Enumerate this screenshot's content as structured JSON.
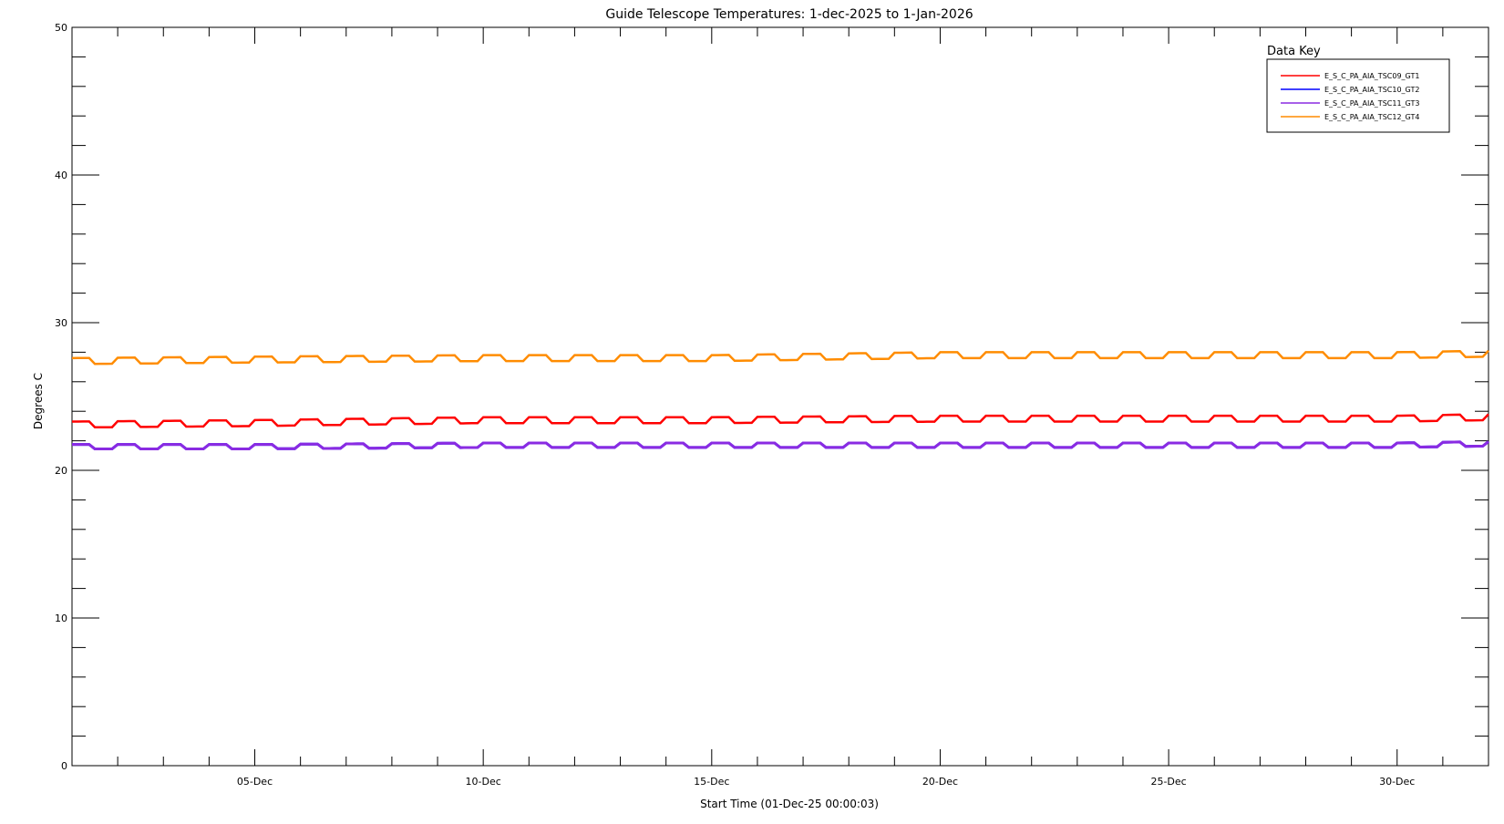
{
  "chart_data": {
    "type": "line",
    "title": "Guide Telescope Temperatures: 1-dec-2025 to 1-Jan-2026",
    "xlabel": "Start Time (01-Dec-25 00:00:03)",
    "ylabel": "Degrees C",
    "ylim": [
      0,
      50
    ],
    "yticks": [
      0,
      10,
      20,
      30,
      40,
      50
    ],
    "xlim_days": [
      1,
      32
    ],
    "xticks": [
      {
        "day": 5,
        "label": "05-Dec"
      },
      {
        "day": 10,
        "label": "10-Dec"
      },
      {
        "day": 15,
        "label": "15-Dec"
      },
      {
        "day": 20,
        "label": "20-Dec"
      },
      {
        "day": 25,
        "label": "25-Dec"
      },
      {
        "day": 30,
        "label": "30-Dec"
      }
    ],
    "legend": {
      "title": "Data Key",
      "placement": "top-right"
    },
    "grid": false,
    "series": [
      {
        "name": "E_S_C_PA_AIA_TSC09_GT1",
        "color": "#ff0000",
        "start_value": 23.1,
        "end_value": 23.6,
        "oscillation_amplitude": 0.2,
        "x": [
          "01-Dec",
          "05-Dec",
          "10-Dec",
          "15-Dec",
          "20-Dec",
          "25-Dec",
          "30-Dec",
          "01-Jan"
        ],
        "y": [
          23.1,
          23.2,
          23.4,
          23.4,
          23.5,
          23.5,
          23.5,
          23.6
        ]
      },
      {
        "name": "E_S_C_PA_AIA_TSC10_GT2",
        "color": "#0000ff",
        "start_value": 21.6,
        "end_value": 21.8,
        "oscillation_amplitude": 0.15,
        "x": [
          "01-Dec",
          "05-Dec",
          "10-Dec",
          "15-Dec",
          "20-Dec",
          "25-Dec",
          "30-Dec",
          "01-Jan"
        ],
        "y": [
          21.6,
          21.6,
          21.7,
          21.7,
          21.7,
          21.7,
          21.7,
          21.8
        ]
      },
      {
        "name": "E_S_C_PA_AIA_TSC11_GT3",
        "color": "#8a2be2",
        "start_value": 21.6,
        "end_value": 21.8,
        "oscillation_amplitude": 0.15,
        "x": [
          "01-Dec",
          "05-Dec",
          "10-Dec",
          "15-Dec",
          "20-Dec",
          "25-Dec",
          "30-Dec",
          "01-Jan"
        ],
        "y": [
          21.6,
          21.6,
          21.7,
          21.7,
          21.7,
          21.7,
          21.7,
          21.8
        ]
      },
      {
        "name": "E_S_C_PA_AIA_TSC12_GT4",
        "color": "#ff8c00",
        "start_value": 27.4,
        "end_value": 27.9,
        "oscillation_amplitude": 0.2,
        "x": [
          "01-Dec",
          "05-Dec",
          "10-Dec",
          "15-Dec",
          "20-Dec",
          "25-Dec",
          "30-Dec",
          "01-Jan"
        ],
        "y": [
          27.4,
          27.5,
          27.6,
          27.6,
          27.8,
          27.8,
          27.8,
          27.9
        ]
      }
    ]
  }
}
